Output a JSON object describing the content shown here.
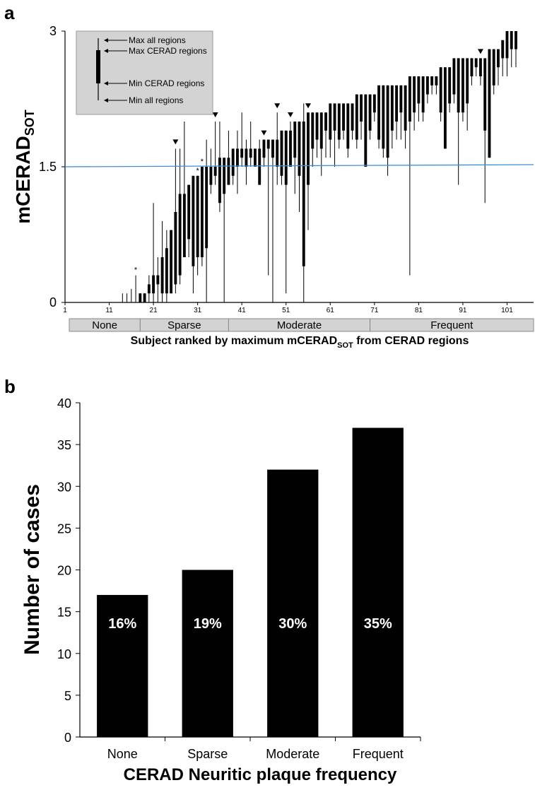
{
  "chart_data": [
    {
      "panel": "a",
      "type": "bar",
      "ylabel": "mCERAD",
      "ylabel_sub": "SOT",
      "xlabel": "Subject ranked by maximum mCERAD",
      "xlabel_sub": "SOT",
      "xlabel_end": " from CERAD regions",
      "ylim": [
        0,
        3
      ],
      "yticks": [
        "0",
        "1.5",
        "3"
      ],
      "xticks": [
        "1",
        "11",
        "21",
        "31",
        "41",
        "51",
        "61",
        "71",
        "81",
        "91",
        "101"
      ],
      "xlim": [
        1,
        107
      ],
      "threshold": 1.5,
      "threshold_color": "#3d8fd6",
      "groups": [
        {
          "label": "None",
          "from": 1,
          "to": 18
        },
        {
          "label": "Sparse",
          "from": 18,
          "to": 38
        },
        {
          "label": "Moderate",
          "from": 38,
          "to": 70
        },
        {
          "label": "Frequent",
          "from": 70,
          "to": 107
        }
      ],
      "legend": [
        "Max all regions",
        "Max CERAD regions",
        "Min CERAD regions",
        "Min all regions"
      ],
      "subjects": [
        [
          1,
          0,
          0,
          0,
          0
        ],
        [
          2,
          0,
          0,
          0,
          0
        ],
        [
          3,
          0,
          0,
          0,
          0
        ],
        [
          4,
          0,
          0,
          0,
          0
        ],
        [
          5,
          0,
          0,
          0,
          0
        ],
        [
          6,
          0,
          0,
          0,
          0
        ],
        [
          7,
          0,
          0,
          0,
          0
        ],
        [
          8,
          0,
          0,
          0,
          0
        ],
        [
          9,
          0,
          0,
          0,
          0
        ],
        [
          10,
          0,
          0,
          0,
          0
        ],
        [
          11,
          0,
          0,
          0,
          0
        ],
        [
          12,
          0,
          0,
          0,
          0
        ],
        [
          13,
          0,
          0,
          0,
          0
        ],
        [
          14,
          0,
          0,
          0,
          0.1
        ],
        [
          15,
          0,
          0,
          0,
          0.1
        ],
        [
          16,
          0,
          0,
          0,
          0.15
        ],
        [
          17,
          0,
          0,
          0,
          0.3
        ],
        [
          18,
          0,
          0.1,
          0,
          0.1
        ],
        [
          19,
          0,
          0.1,
          0,
          0.1
        ],
        [
          20,
          0.1,
          0.2,
          0,
          0.3
        ],
        [
          21,
          0.1,
          0.3,
          0,
          1.1
        ],
        [
          22,
          0.2,
          0.3,
          0,
          0.5
        ],
        [
          23,
          0.1,
          0.5,
          0,
          0.9
        ],
        [
          24,
          0.1,
          0.6,
          0,
          0.8
        ],
        [
          25,
          0.1,
          0.8,
          0.1,
          0.8
        ],
        [
          26,
          0.2,
          1.0,
          0.1,
          1.7
        ],
        [
          27,
          0.3,
          1.2,
          0.2,
          1.7
        ],
        [
          28,
          0.5,
          1.2,
          0.5,
          2.0
        ],
        [
          29,
          0.7,
          1.3,
          0.5,
          1.3
        ],
        [
          30,
          0.4,
          1.4,
          0.1,
          1.4
        ],
        [
          31,
          0.5,
          1.4,
          0.3,
          1.4
        ],
        [
          32,
          0.5,
          1.5,
          0.4,
          1.5
        ],
        [
          33,
          0.6,
          1.5,
          0,
          1.8
        ],
        [
          34,
          1.3,
          1.5,
          1.2,
          1.7
        ],
        [
          35,
          1.4,
          1.5,
          1.3,
          2.0
        ],
        [
          36,
          1.1,
          1.6,
          1.0,
          2.0
        ],
        [
          37,
          1.2,
          1.6,
          0,
          1.6
        ],
        [
          38,
          1.3,
          1.6,
          1.3,
          1.9
        ],
        [
          39,
          1.4,
          1.7,
          1.3,
          1.7
        ],
        [
          40,
          1.5,
          1.7,
          1.2,
          1.9
        ],
        [
          41,
          1.6,
          1.7,
          1.5,
          2.1
        ],
        [
          42,
          1.5,
          1.7,
          1.3,
          1.8
        ],
        [
          43,
          1.6,
          1.7,
          1.5,
          2.0
        ],
        [
          44,
          1.5,
          1.7,
          1.5,
          1.7
        ],
        [
          45,
          1.3,
          1.7,
          1.3,
          1.8
        ],
        [
          46,
          1.6,
          1.8,
          1.5,
          1.8
        ],
        [
          47,
          1.7,
          1.8,
          0.3,
          1.8
        ],
        [
          48,
          1.6,
          1.8,
          0,
          1.8
        ],
        [
          49,
          1.5,
          1.8,
          1.3,
          2.1
        ],
        [
          50,
          1.4,
          1.9,
          1.3,
          1.9
        ],
        [
          51,
          1.3,
          1.9,
          0.1,
          1.9
        ],
        [
          52,
          1.5,
          1.9,
          1.5,
          2.0
        ],
        [
          53,
          1.6,
          2.0,
          1.2,
          2.0
        ],
        [
          54,
          1.4,
          2.0,
          1.0,
          2.0
        ],
        [
          55,
          0.4,
          2.0,
          0,
          2.2
        ],
        [
          56,
          1.3,
          2.1,
          0.8,
          2.1
        ],
        [
          57,
          1.7,
          2.1,
          1.5,
          2.1
        ],
        [
          58,
          1.8,
          2.1,
          1.6,
          2.1
        ],
        [
          59,
          1.7,
          2.1,
          1.4,
          2.1
        ],
        [
          60,
          1.9,
          2.1,
          1.6,
          2.1
        ],
        [
          61,
          1.8,
          2.2,
          1.6,
          2.2
        ],
        [
          62,
          1.9,
          2.2,
          1.5,
          2.2
        ],
        [
          63,
          1.8,
          2.2,
          1.7,
          2.2
        ],
        [
          64,
          1.9,
          2.2,
          1.8,
          2.2
        ],
        [
          65,
          1.7,
          2.2,
          1.6,
          2.2
        ],
        [
          66,
          1.9,
          2.2,
          1.8,
          2.2
        ],
        [
          67,
          1.8,
          2.3,
          1.7,
          2.3
        ],
        [
          68,
          2.0,
          2.3,
          1.8,
          2.3
        ],
        [
          69,
          1.5,
          2.3,
          1.5,
          2.3
        ],
        [
          70,
          1.9,
          2.3,
          1.8,
          2.3
        ],
        [
          71,
          2.1,
          2.3,
          2.0,
          2.3
        ],
        [
          72,
          1.8,
          2.4,
          1.7,
          2.4
        ],
        [
          73,
          1.7,
          2.4,
          1.6,
          2.4
        ],
        [
          74,
          1.6,
          2.4,
          1.4,
          2.4
        ],
        [
          75,
          1.9,
          2.4,
          1.7,
          2.4
        ],
        [
          76,
          2.0,
          2.4,
          1.8,
          2.4
        ],
        [
          77,
          2.1,
          2.4,
          1.8,
          2.4
        ],
        [
          78,
          1.9,
          2.4,
          1.7,
          2.4
        ],
        [
          79,
          2.0,
          2.5,
          0.3,
          2.5
        ],
        [
          80,
          2.1,
          2.5,
          1.9,
          2.5
        ],
        [
          81,
          2.2,
          2.5,
          2.0,
          2.5
        ],
        [
          82,
          2.1,
          2.5,
          2.0,
          2.5
        ],
        [
          83,
          2.3,
          2.5,
          2.2,
          2.5
        ],
        [
          84,
          2.4,
          2.5,
          2.3,
          2.5
        ],
        [
          85,
          2.4,
          2.5,
          2.3,
          2.5
        ],
        [
          86,
          2.1,
          2.6,
          2.0,
          2.6
        ],
        [
          87,
          1.7,
          2.6,
          1.7,
          2.6
        ],
        [
          88,
          2.2,
          2.6,
          2.1,
          2.6
        ],
        [
          89,
          2.3,
          2.7,
          2.2,
          2.7
        ],
        [
          90,
          2.1,
          2.7,
          1.3,
          2.7
        ],
        [
          91,
          2.1,
          2.7,
          2.0,
          2.7
        ],
        [
          92,
          2.2,
          2.7,
          1.9,
          2.7
        ],
        [
          93,
          2.5,
          2.7,
          2.4,
          2.7
        ],
        [
          94,
          2.6,
          2.7,
          2.5,
          2.7
        ],
        [
          95,
          2.5,
          2.7,
          2.4,
          2.7
        ],
        [
          96,
          1.9,
          2.7,
          1.1,
          2.7
        ],
        [
          97,
          1.6,
          2.8,
          1.6,
          2.8
        ],
        [
          98,
          2.4,
          2.8,
          2.3,
          2.8
        ],
        [
          99,
          2.6,
          2.8,
          2.4,
          2.8
        ],
        [
          100,
          2.7,
          2.9,
          2.5,
          2.9
        ],
        [
          101,
          2.7,
          3.0,
          2.5,
          3.0
        ],
        [
          102,
          2.8,
          3.0,
          2.6,
          3.0
        ],
        [
          103,
          2.8,
          3.0,
          2.6,
          3.0
        ]
      ],
      "triangles": [
        26,
        35,
        46,
        49,
        52,
        56,
        95
      ],
      "asterisks": [
        17,
        31,
        32
      ]
    },
    {
      "panel": "b",
      "type": "bar",
      "categories": [
        "None",
        "Sparse",
        "Moderate",
        "Frequent"
      ],
      "values": [
        17,
        20,
        32,
        37
      ],
      "labels": [
        "16%",
        "19%",
        "30%",
        "35%"
      ],
      "xlabel": "CERAD Neuritic plaque frequency",
      "ylabel": "Number of cases",
      "ylim": [
        0,
        40
      ],
      "yticks": [
        "0",
        "5",
        "10",
        "15",
        "20",
        "25",
        "30",
        "35",
        "40"
      ]
    }
  ]
}
